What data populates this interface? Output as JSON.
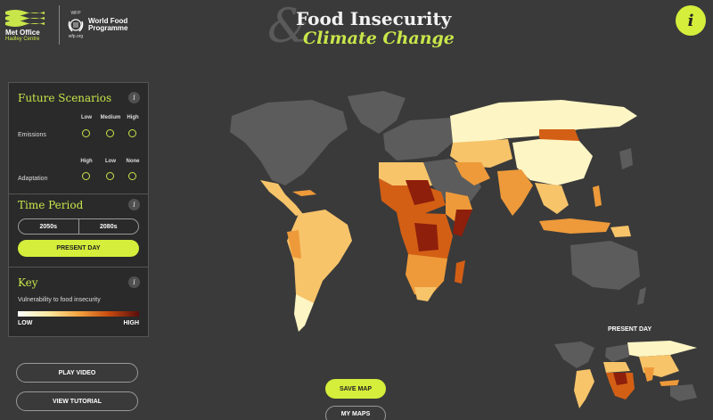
{
  "header": {
    "met_office_name": "Met Office",
    "met_office_sub": "Hadley Centre",
    "wfp_abbr": "WFP",
    "wfp_url": "wfp.org",
    "wfp_name_line1": "World Food",
    "wfp_name_line2": "Programme",
    "title_amp": "&",
    "title_line1": "Food Insecurity",
    "title_line2": "Climate Change",
    "info_label": "i"
  },
  "panel": {
    "future": {
      "title": "Future Scenarios",
      "info": "i",
      "emissions_label": "Emissions",
      "emissions_cols": [
        "Low",
        "Medium",
        "High"
      ],
      "adaptation_label": "Adaptation",
      "adaptation_cols": [
        "High",
        "Low",
        "None"
      ]
    },
    "time": {
      "title": "Time Period",
      "info": "i",
      "options": [
        "2050s",
        "2080s"
      ],
      "present_label": "PRESENT DAY"
    },
    "key": {
      "title": "Key",
      "info": "i",
      "description": "Vulnerability to food insecurity",
      "low": "LOW",
      "high": "HIGH",
      "gradient_colors": [
        "#ffffff",
        "#fce9a0",
        "#f4a340",
        "#c64b0f",
        "#5a0d0d"
      ]
    }
  },
  "buttons": {
    "play_video": "PLAY VIDEO",
    "view_tutorial": "VIEW TUTORIAL",
    "save_map": "SAVE MAP",
    "my_maps": "MY MAPS"
  },
  "mini_map": {
    "label": "PRESENT DAY"
  },
  "colors": {
    "accent": "#d4ee3b",
    "background": "#3a3a3a",
    "no_data": "#5c5c5c",
    "low": "#fdf5c4",
    "mid_low": "#f7c46a",
    "mid": "#ee9a3a",
    "mid_high": "#d35f15",
    "high": "#8e1f0b"
  }
}
